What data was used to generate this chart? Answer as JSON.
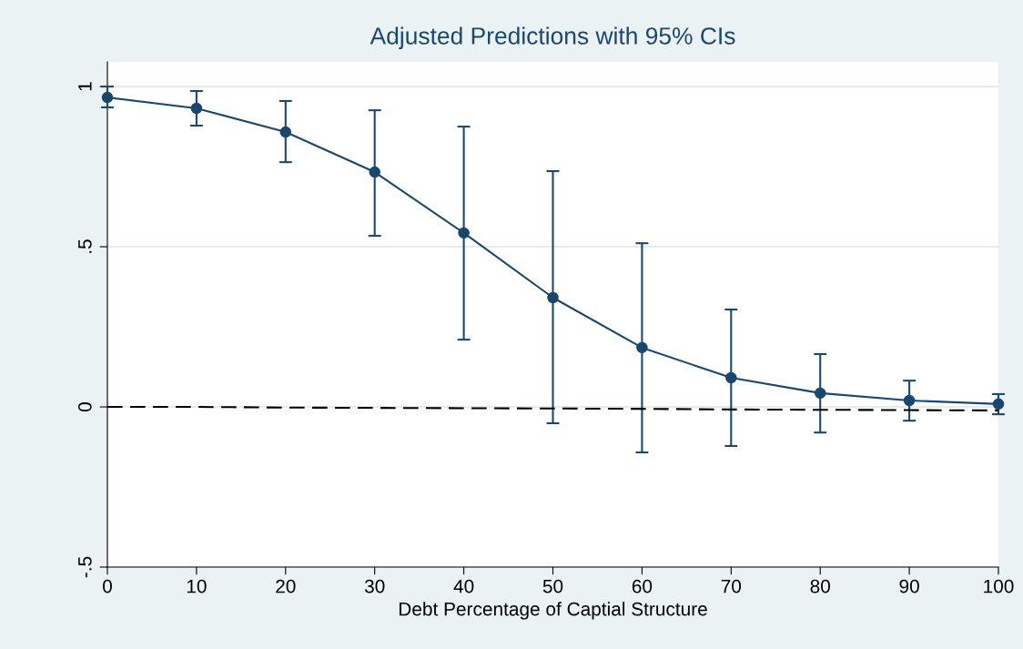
{
  "chart_data": {
    "type": "line",
    "title": "Adjusted Predictions with 95% CIs",
    "xlabel": "Debt Percentage of Captial Structure",
    "x": [
      0,
      10,
      20,
      30,
      40,
      50,
      60,
      70,
      80,
      90,
      100
    ],
    "series": [
      {
        "color": "#1a476f",
        "marker": "circle",
        "line_style": "solid",
        "values": [
          0.966,
          0.932,
          0.858,
          0.733,
          0.543,
          0.341,
          0.185,
          0.091,
          0.043,
          0.02,
          0.009
        ],
        "errors": [
          [
            0.935,
            1.0
          ],
          [
            0.878,
            0.986
          ],
          [
            0.764,
            0.955
          ],
          [
            0.534,
            0.926
          ],
          [
            0.21,
            0.875
          ],
          [
            -0.051,
            0.736
          ],
          [
            -0.142,
            0.511
          ],
          [
            -0.122,
            0.304
          ],
          [
            -0.08,
            0.165
          ],
          [
            -0.043,
            0.082
          ],
          [
            -0.023,
            0.04
          ]
        ]
      },
      {
        "color": "#000000",
        "marker": "none",
        "line_style": "dashed",
        "values": [
          0,
          0,
          -0.002,
          -0.003,
          -0.004,
          -0.005,
          -0.006,
          -0.008,
          -0.009,
          -0.01,
          -0.011
        ]
      }
    ],
    "xlim": [
      0,
      100
    ],
    "xticks": [
      0,
      10,
      20,
      30,
      40,
      50,
      60,
      70,
      80,
      90,
      100
    ],
    "ylim": [
      -0.5,
      1.077
    ],
    "yticks": [
      {
        "value": -0.5,
        "label": "-.5"
      },
      0,
      {
        "value": 0.5,
        "label": ".5"
      },
      1
    ],
    "grid": "y",
    "legend": false
  }
}
